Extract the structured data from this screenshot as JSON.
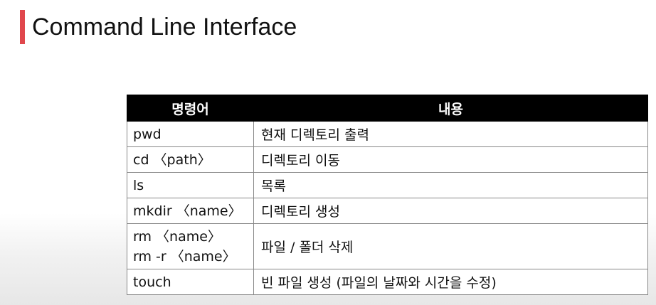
{
  "title": "Command Line Interface",
  "accent_color": "#e0474c",
  "table": {
    "headers": [
      "명령어",
      "내용"
    ],
    "rows": [
      {
        "commands": [
          "pwd"
        ],
        "description": "현재 디렉토리 출력"
      },
      {
        "commands": [
          "cd 〈path〉"
        ],
        "description": "디렉토리 이동"
      },
      {
        "commands": [
          "ls"
        ],
        "description": "목록"
      },
      {
        "commands": [
          "mkdir 〈name〉"
        ],
        "description": "디렉토리 생성"
      },
      {
        "commands": [
          "rm 〈name〉",
          "rm -r 〈name〉"
        ],
        "description": "파일 / 폴더 삭제"
      },
      {
        "commands": [
          "touch"
        ],
        "description": "빈 파일 생성 (파일의 날짜와 시간을 수정)"
      }
    ]
  }
}
